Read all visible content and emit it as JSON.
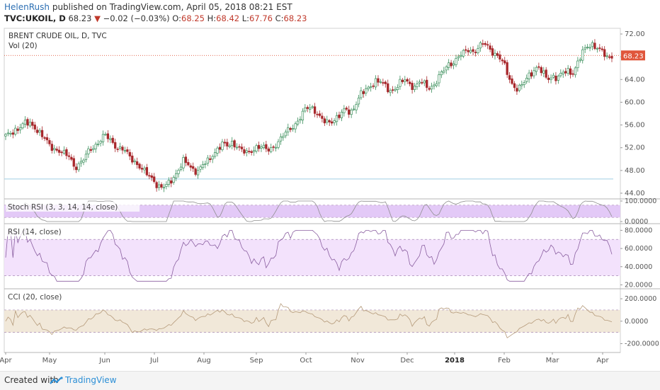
{
  "header": {
    "author": "HelenRush",
    "published_text": "published on TradingView.com, April 05, 2018 08:21 EST",
    "symbol": "TVC:UKOIL, D",
    "last": "68.23",
    "change": "−0.02 (−0.03%)",
    "open_label": "O:",
    "open": "68.25",
    "high_label": "H:",
    "high": "68.42",
    "low_label": "L:",
    "low": "67.76",
    "close_label": "C:",
    "close": "68.23"
  },
  "footer": {
    "created_label": "Created with",
    "brand": "TradingView"
  },
  "colors": {
    "up": "#3b8f5c",
    "down": "#a8282c",
    "stoch_band": "#e3c9f7",
    "rsi_band": "#f3e2fc",
    "cci_band": "#f1e8d9",
    "price_label": "#e0563b"
  },
  "chart_data": [
    {
      "type": "candlestick",
      "title": "BRENT CRUDE OIL, D, TVC",
      "indicator_label": "Vol (20)",
      "ylim": [
        43,
        73
      ],
      "yticks": [
        "44.00",
        "48.00",
        "52.00",
        "56.00",
        "60.00",
        "64.00",
        "68.00",
        "72.00"
      ],
      "ytick_values": [
        44,
        48,
        52,
        56,
        60,
        64,
        68,
        72
      ],
      "last_price_label": "68.23",
      "last_price": 68.23,
      "reference_line": 46.5,
      "months": [
        "Apr",
        "May",
        "Jun",
        "Jul",
        "Aug",
        "Sep",
        "Oct",
        "Nov",
        "Dec",
        "2018",
        "Feb",
        "Mar",
        "Apr"
      ],
      "close_path": [
        53.9,
        54.5,
        55.2,
        55.8,
        56.3,
        56.1,
        55.6,
        54.6,
        53.4,
        52.2,
        51.8,
        51.5,
        50.8,
        50.3,
        48.6,
        49.2,
        50.1,
        51.6,
        52.3,
        53.2,
        54.1,
        53.6,
        52.6,
        51.9,
        51.6,
        50.5,
        49.8,
        48.9,
        47.8,
        47.1,
        46.4,
        45.2,
        44.9,
        45.6,
        46.8,
        48.1,
        49.6,
        49.0,
        48.2,
        48.0,
        48.9,
        49.5,
        50.8,
        51.9,
        52.6,
        52.2,
        52.9,
        52.4,
        51.4,
        50.9,
        51.6,
        52.3,
        52.1,
        51.5,
        51.9,
        52.8,
        53.7,
        54.8,
        55.6,
        56.4,
        57.6,
        58.9,
        59.2,
        58.4,
        57.0,
        56.3,
        56.6,
        57.3,
        57.9,
        58.6,
        58.1,
        59.8,
        61.4,
        61.9,
        62.8,
        63.9,
        63.7,
        62.7,
        61.9,
        62.6,
        63.4,
        63.8,
        63.1,
        62.8,
        63.7,
        63.0,
        62.4,
        63.3,
        64.6,
        65.6,
        66.7,
        67.2,
        68.2,
        68.6,
        69.3,
        68.9,
        69.7,
        70.3,
        69.6,
        68.8,
        68.0,
        66.8,
        64.6,
        62.9,
        62.3,
        63.1,
        64.6,
        65.6,
        66.3,
        64.9,
        64.1,
        64.7,
        64.3,
        65.0,
        65.5,
        65.2,
        66.8,
        68.6,
        69.8,
        70.3,
        69.6,
        68.8,
        67.8,
        68.23
      ],
      "stoch_rsi": {
        "label": "Stoch RSI (3, 3, 14, 14, close)",
        "ylim": [
          0,
          100
        ],
        "yticks": [
          "100.0000",
          "0.0000"
        ],
        "ytick_values": [
          100,
          0
        ],
        "band": [
          20,
          80
        ]
      },
      "rsi": {
        "label": "RSI (14, close)",
        "ylim": [
          18,
          85
        ],
        "yticks": [
          "80.0000",
          "60.0000",
          "40.0000",
          "20.0000"
        ],
        "ytick_values": [
          80,
          60,
          40,
          20
        ],
        "band": [
          30,
          70
        ]
      },
      "cci": {
        "label": "CCI (20, close)",
        "ylim": [
          -260,
          270
        ],
        "yticks": [
          "200.0000",
          "0.0000",
          "-200.0000"
        ],
        "ytick_values": [
          200,
          0,
          -200
        ],
        "band": [
          -100,
          100
        ]
      }
    }
  ]
}
